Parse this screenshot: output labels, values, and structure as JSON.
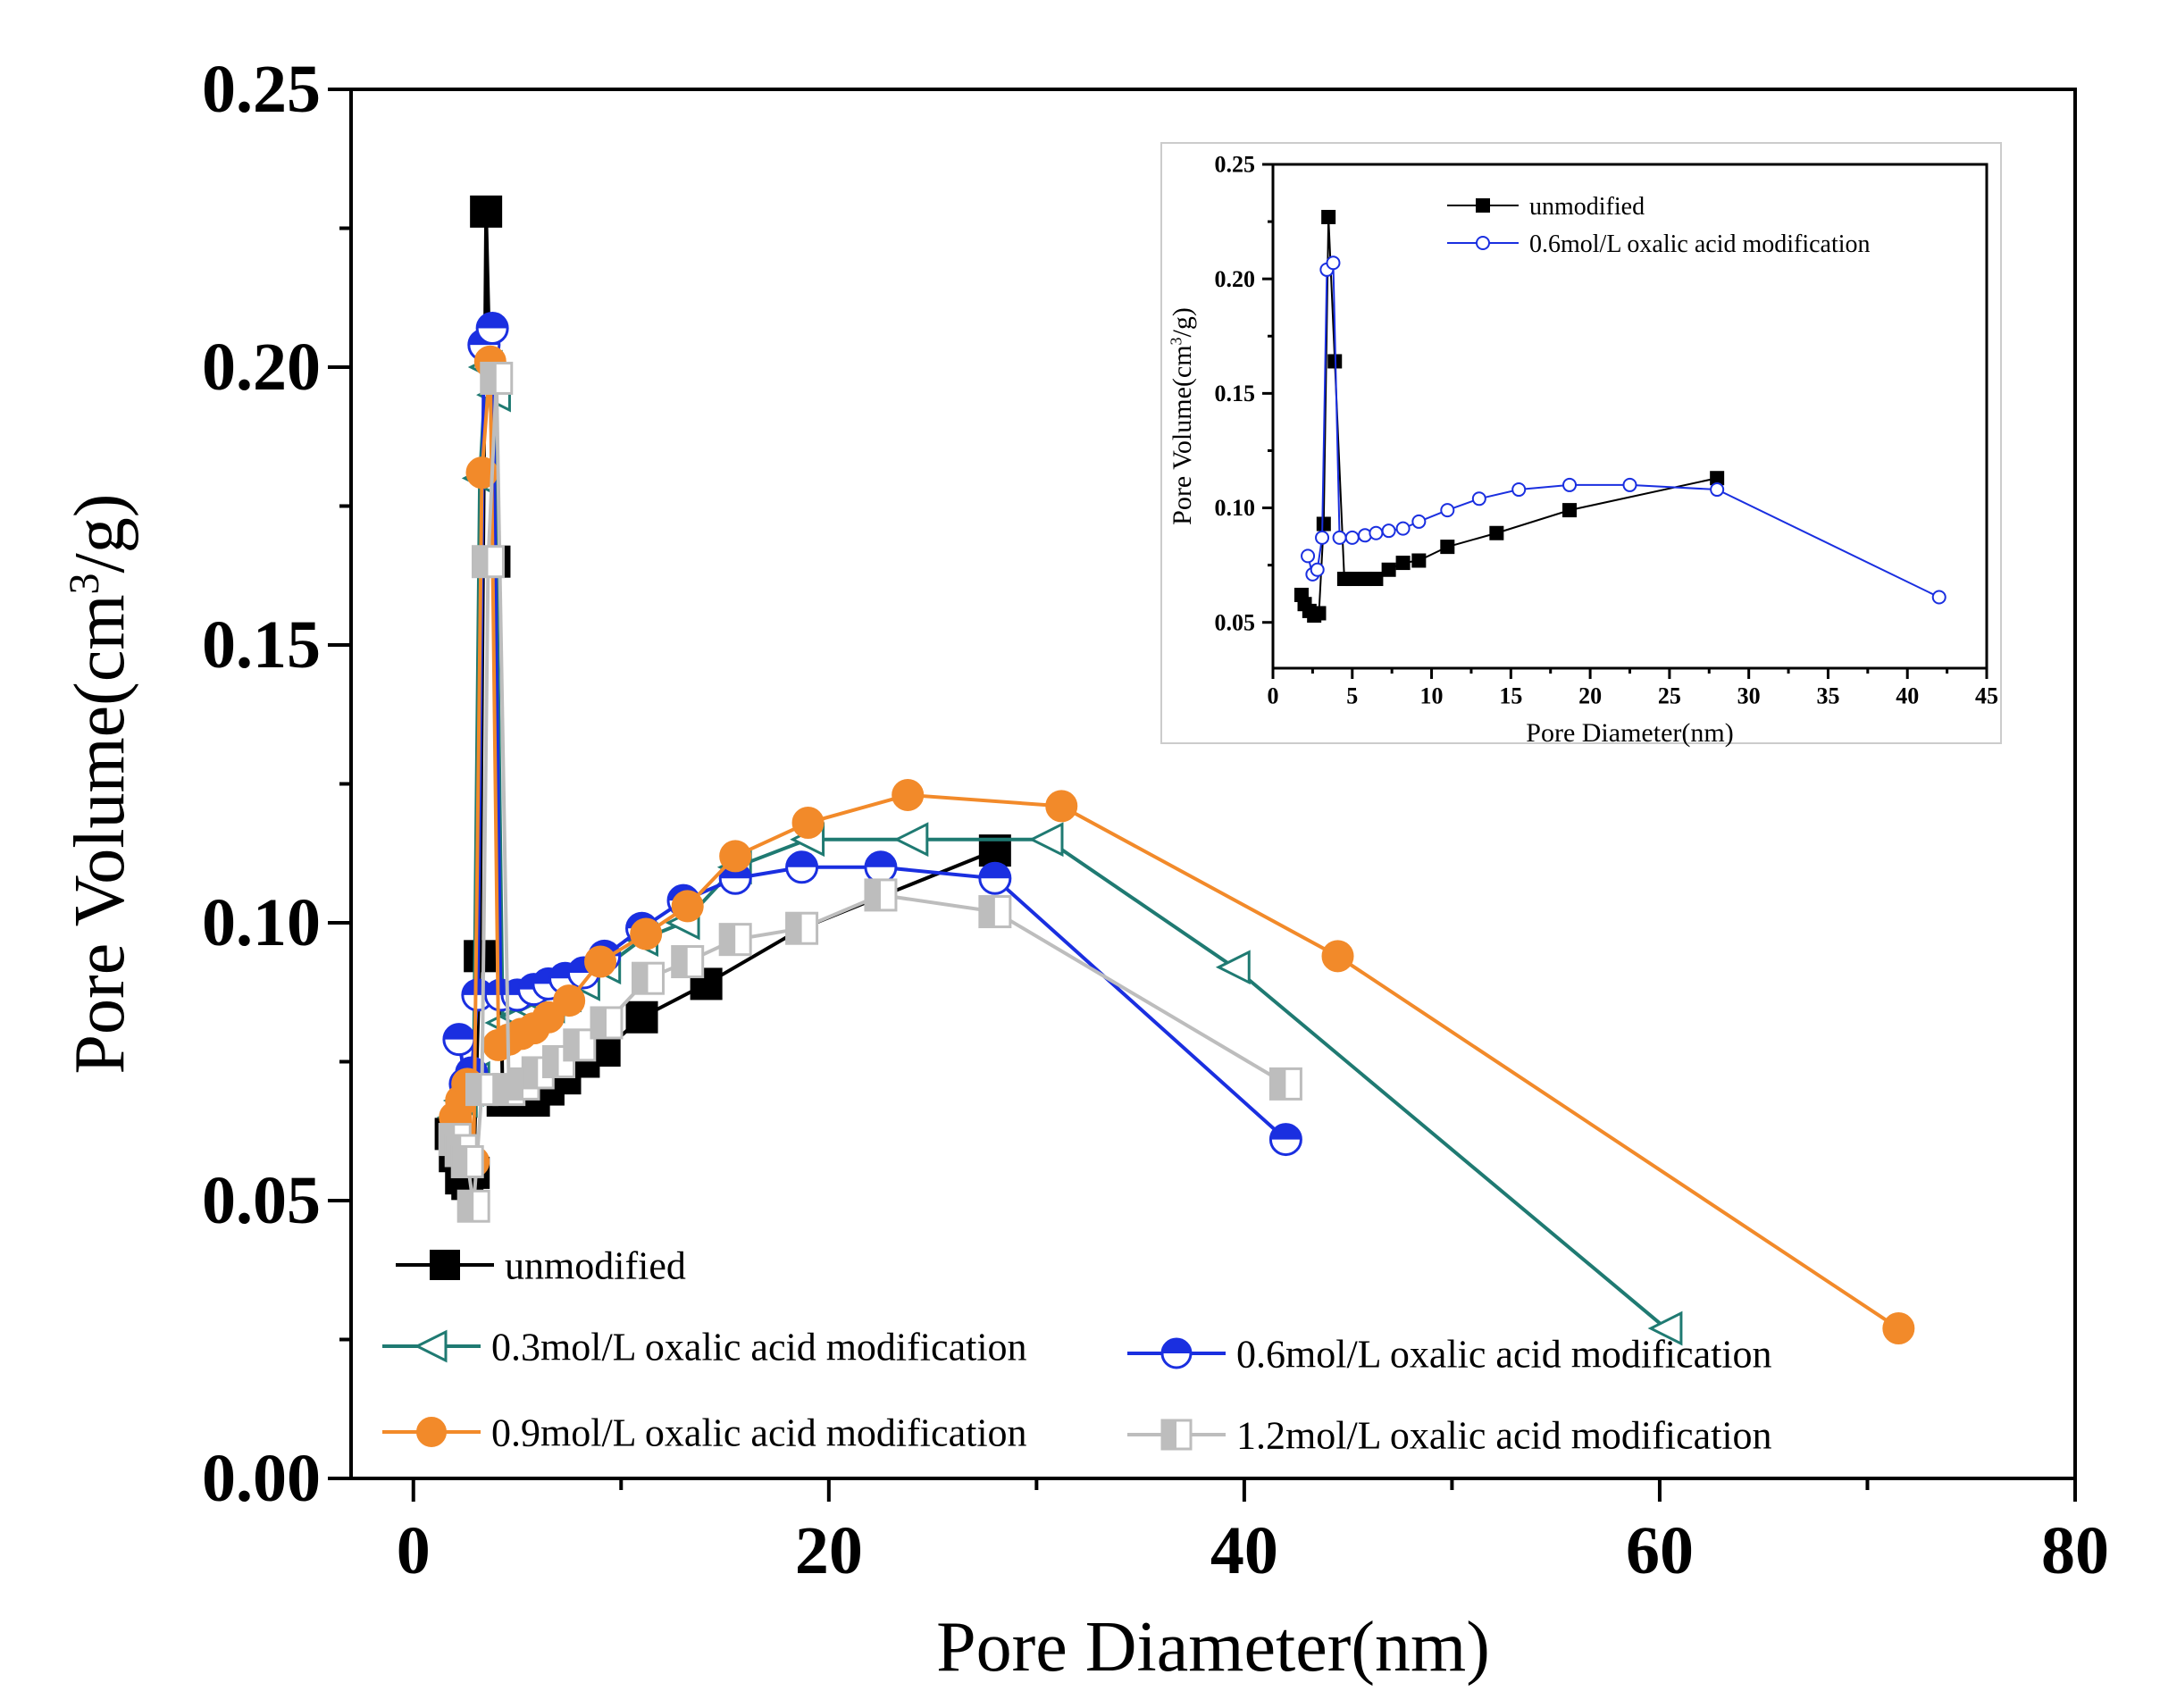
{
  "chart_data": [
    {
      "id": "main",
      "type": "line",
      "xlabel": "Pore Diameter(nm)",
      "ylabel_parts": [
        "Pore Volume(cm",
        "3",
        "/g)"
      ],
      "xlim": [
        -3,
        80
      ],
      "ylim": [
        0,
        0.25
      ],
      "xticks": [
        0,
        20,
        40,
        60,
        80
      ],
      "yticks": [
        0.0,
        0.05,
        0.1,
        0.15,
        0.2,
        0.25
      ],
      "ytick_labels": [
        "0.00",
        "0.05",
        "0.10",
        "0.15",
        "0.20",
        "0.25"
      ],
      "grid": false,
      "legend_position": "bottom-left",
      "series": [
        {
          "name": "unmodified",
          "color": "#000000",
          "marker": "square-filled",
          "x": [
            1.8,
            2.0,
            2.3,
            2.6,
            2.9,
            3.2,
            3.5,
            3.9,
            4.3,
            5.0,
            5.8,
            6.5,
            7.3,
            8.2,
            9.2,
            11.0,
            14.1,
            18.7,
            28.0
          ],
          "y": [
            0.062,
            0.058,
            0.054,
            0.053,
            0.055,
            0.094,
            0.228,
            0.165,
            0.068,
            0.068,
            0.068,
            0.07,
            0.072,
            0.075,
            0.077,
            0.083,
            0.089,
            0.099,
            0.113
          ]
        },
        {
          "name": "0.3mol/L oxalic acid modification",
          "color": "#1f7a72",
          "marker": "triangle-left-open",
          "x": [
            2.0,
            2.3,
            2.6,
            2.9,
            3.2,
            3.5,
            3.9,
            4.3,
            5.0,
            5.8,
            6.5,
            7.3,
            8.2,
            9.2,
            11.0,
            13.0,
            15.5,
            19.0,
            24.0,
            30.5,
            39.5,
            60.3
          ],
          "y": [
            0.065,
            0.068,
            0.07,
            0.072,
            0.18,
            0.2,
            0.195,
            0.082,
            0.083,
            0.084,
            0.085,
            0.087,
            0.089,
            0.092,
            0.097,
            0.1,
            0.11,
            0.115,
            0.115,
            0.115,
            0.092,
            0.027
          ]
        },
        {
          "name": "0.6mol/L oxalic acid modification",
          "color": "#1a2fe0",
          "marker": "circle-half",
          "x": [
            2.2,
            2.5,
            2.8,
            3.1,
            3.4,
            3.8,
            4.2,
            5.0,
            5.8,
            6.5,
            7.3,
            8.2,
            9.2,
            11.0,
            13.0,
            15.5,
            18.7,
            22.5,
            28.0,
            42.0
          ],
          "y": [
            0.079,
            0.071,
            0.073,
            0.087,
            0.204,
            0.207,
            0.087,
            0.087,
            0.088,
            0.089,
            0.09,
            0.091,
            0.094,
            0.099,
            0.104,
            0.108,
            0.11,
            0.11,
            0.108,
            0.061
          ]
        },
        {
          "name": "0.9mol/L oxalic acid modification",
          "color": "#f28a2a",
          "marker": "circle-filled",
          "x": [
            2.0,
            2.3,
            2.6,
            2.9,
            3.3,
            3.7,
            4.1,
            4.6,
            5.2,
            5.8,
            6.5,
            7.5,
            9.0,
            11.2,
            13.2,
            15.5,
            19.0,
            23.8,
            31.2,
            44.5,
            71.5
          ],
          "y": [
            0.065,
            0.068,
            0.071,
            0.057,
            0.181,
            0.201,
            0.078,
            0.079,
            0.08,
            0.081,
            0.083,
            0.086,
            0.093,
            0.098,
            0.103,
            0.112,
            0.118,
            0.123,
            0.121,
            0.094,
            0.027
          ]
        },
        {
          "name": "1.2mol/L oxalic acid modification",
          "color": "#bdbdbd",
          "marker": "square-half",
          "x": [
            2.0,
            2.3,
            2.6,
            2.9,
            3.3,
            3.6,
            4.0,
            4.6,
            5.3,
            6.0,
            7.0,
            8.0,
            9.3,
            11.3,
            13.2,
            15.5,
            18.7,
            22.5,
            28.0,
            42.0
          ],
          "y": [
            0.061,
            0.059,
            0.057,
            0.049,
            0.07,
            0.165,
            0.198,
            0.07,
            0.071,
            0.073,
            0.075,
            0.078,
            0.082,
            0.09,
            0.093,
            0.097,
            0.099,
            0.105,
            0.102,
            0.071
          ]
        }
      ]
    },
    {
      "id": "inset",
      "type": "line",
      "xlabel": "Pore Diameter(nm)",
      "ylabel_parts": [
        "Pore Volume(cm",
        "3",
        "/g)"
      ],
      "xlim": [
        0,
        45
      ],
      "ylim": [
        0.03,
        0.25
      ],
      "xticks": [
        0,
        5,
        10,
        15,
        20,
        25,
        30,
        35,
        40,
        45
      ],
      "yticks": [
        0.05,
        0.1,
        0.15,
        0.2,
        0.25
      ],
      "ytick_labels": [
        "0.05",
        "0.10",
        "0.15",
        "0.20",
        "0.25"
      ],
      "grid": false,
      "legend_position": "top",
      "series": [
        {
          "name": "unmodified",
          "color": "#000000",
          "marker": "square-filled",
          "x": [
            1.8,
            2.0,
            2.3,
            2.6,
            2.9,
            3.2,
            3.5,
            3.9,
            4.5,
            5.0,
            5.8,
            6.5,
            7.3,
            8.2,
            9.2,
            11.0,
            14.1,
            18.7,
            28.0
          ],
          "y": [
            0.062,
            0.058,
            0.055,
            0.053,
            0.054,
            0.093,
            0.227,
            0.164,
            0.069,
            0.069,
            0.069,
            0.069,
            0.073,
            0.076,
            0.077,
            0.083,
            0.089,
            0.099,
            0.113
          ]
        },
        {
          "name": "0.6mol/L oxalic acid modification",
          "color": "#1a2fe0",
          "marker": "circle-open",
          "x": [
            2.2,
            2.5,
            2.8,
            3.1,
            3.4,
            3.8,
            4.2,
            5.0,
            5.8,
            6.5,
            7.3,
            8.2,
            9.2,
            11.0,
            13.0,
            15.5,
            18.7,
            22.5,
            28.0,
            42.0
          ],
          "y": [
            0.079,
            0.071,
            0.073,
            0.087,
            0.204,
            0.207,
            0.087,
            0.087,
            0.088,
            0.089,
            0.09,
            0.091,
            0.094,
            0.099,
            0.104,
            0.108,
            0.11,
            0.11,
            0.108,
            0.061
          ]
        }
      ]
    }
  ]
}
